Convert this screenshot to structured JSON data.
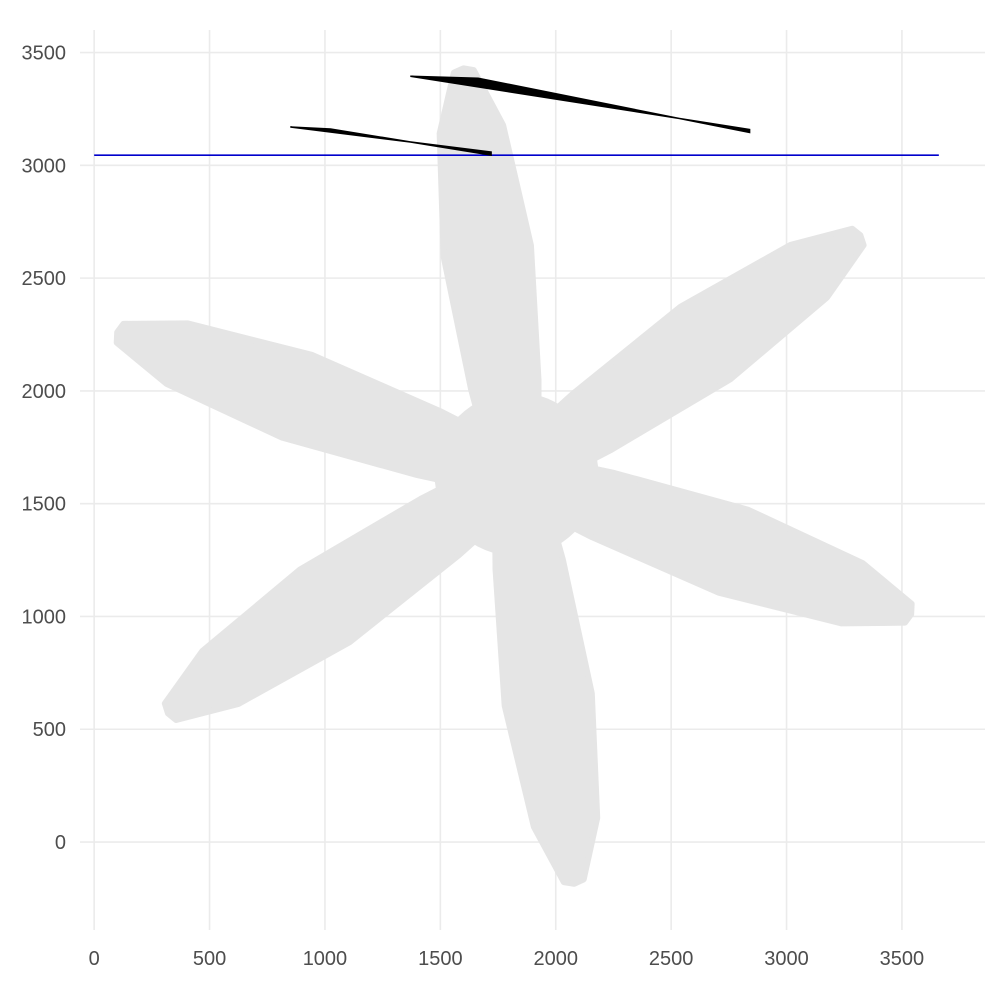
{
  "chart_data": {
    "type": "scatter",
    "title": "",
    "xlabel": "",
    "ylabel": "",
    "xlim": [
      -70,
      3860
    ],
    "ylim": [
      -390,
      3600
    ],
    "grid": true,
    "x_ticks": [
      0,
      500,
      1000,
      1500,
      2000,
      2500,
      3000,
      3500
    ],
    "y_ticks": [
      0,
      500,
      1000,
      1500,
      2000,
      2500,
      3000,
      3500
    ],
    "hline": {
      "y": 3045,
      "x_from": 0,
      "x_to": 3660,
      "color": "#0000cc"
    },
    "propeller": {
      "color": "#e5e5e5",
      "hub": {
        "cx": 1830,
        "cy": 1630,
        "r": 355
      },
      "blade_tips": [
        {
          "x": 1600,
          "y": 3430
        },
        {
          "x": 3320,
          "y": 2690
        },
        {
          "x": 3540,
          "y": 1010
        },
        {
          "x": 2080,
          "y": -185
        },
        {
          "x": 320,
          "y": 570
        },
        {
          "x": 100,
          "y": 2260
        }
      ]
    },
    "segments": [
      {
        "name": "",
        "x1": 1370,
        "y1": 3395,
        "x2": 2840,
        "y2": 3150,
        "color": "#000000"
      },
      {
        "name": "",
        "x1": 850,
        "y1": 3170,
        "x2": 1720,
        "y2": 3050,
        "color": "#000000"
      }
    ]
  }
}
